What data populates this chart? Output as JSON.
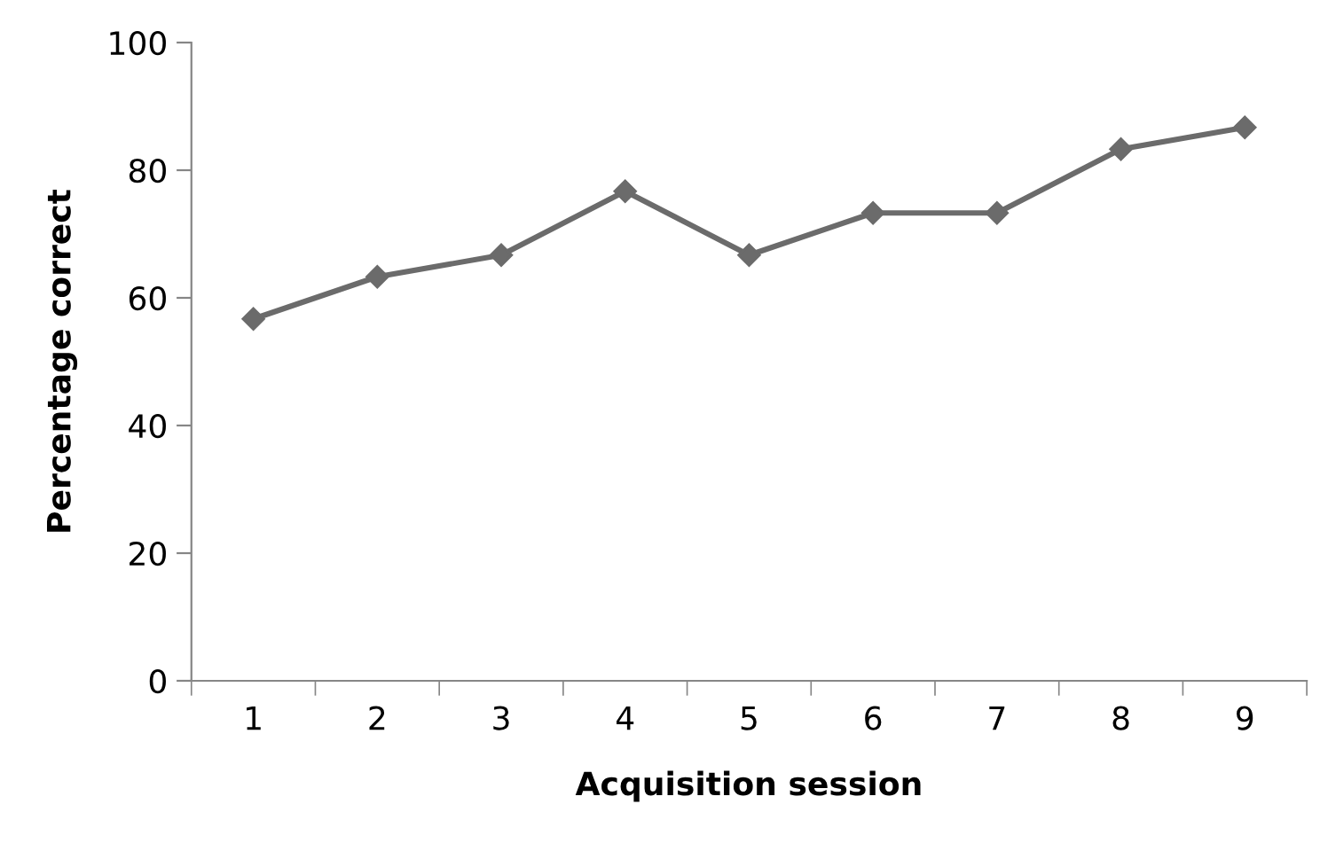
{
  "chart_data": {
    "type": "line",
    "xlabel": "Acquisition session",
    "ylabel": "Percentage correct",
    "categories": [
      "1",
      "2",
      "3",
      "4",
      "5",
      "6",
      "7",
      "8",
      "9"
    ],
    "series": [
      {
        "color": "#6b6b6b",
        "values": [
          56.7,
          63.3,
          66.7,
          76.7,
          66.7,
          73.3,
          73.3,
          83.3,
          86.7
        ]
      }
    ],
    "ylim": [
      0,
      100
    ],
    "yticks": [
      0,
      20,
      40,
      60,
      80,
      100
    ],
    "grid": false,
    "legend": false,
    "marker": "diamond",
    "line_style": "solid"
  }
}
